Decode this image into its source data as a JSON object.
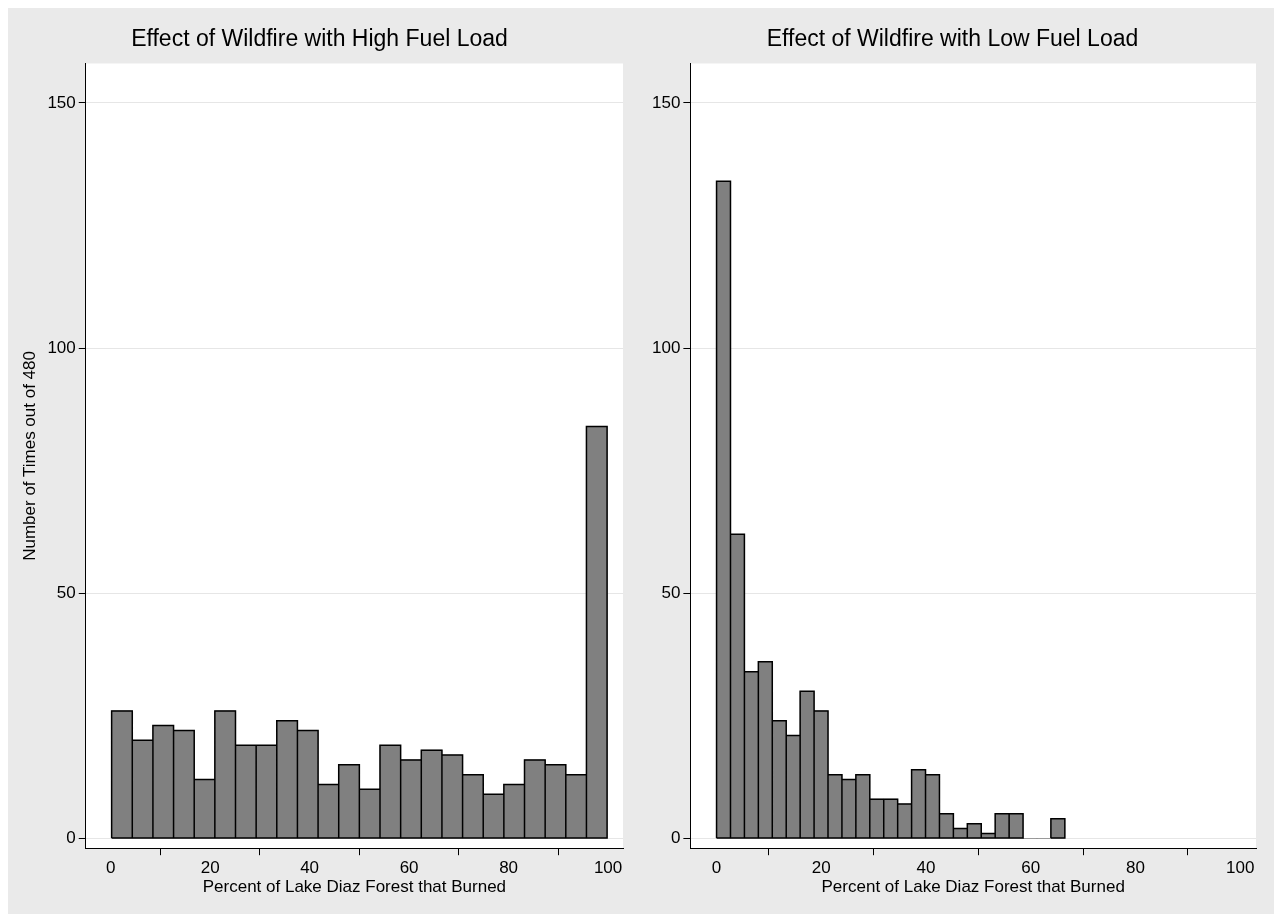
{
  "chart_data": [
    {
      "type": "histogram",
      "title": "Effect of Wildfire with High Fuel Load",
      "xlabel": "Percent of Lake Diaz Forest that Burned",
      "ylabel": "Number of Times out of 480",
      "bins": [
        0.2,
        4.35,
        8.5,
        12.65,
        16.8,
        20.95,
        25.1,
        29.25,
        33.4,
        37.55,
        41.7,
        45.85,
        50,
        54.15,
        58.3,
        62.45,
        66.6,
        70.75,
        74.9,
        79.05,
        83.2,
        87.35,
        91.5,
        95.65,
        99.8
      ],
      "values": [
        26,
        20,
        23,
        22,
        12,
        26,
        19,
        19,
        24,
        22,
        11,
        15,
        10,
        19,
        16,
        18,
        17,
        13,
        9,
        11,
        16,
        15,
        13,
        84
      ],
      "color": "#808080",
      "xlim": [
        -5,
        103
      ],
      "xticks": [
        0,
        20,
        40,
        60,
        80,
        100
      ],
      "ylim": [
        -2,
        158
      ],
      "yticks": [
        0,
        50,
        100,
        150
      ],
      "grid": "y"
    },
    {
      "type": "histogram",
      "title": "Effect of Wildfire with Low Fuel Load",
      "xlabel": "Percent of Lake Diaz Forest that Burned",
      "bins": [
        0,
        2.66,
        5.32,
        7.98,
        10.64,
        13.3,
        15.96,
        18.62,
        21.28,
        23.94,
        26.6,
        29.26,
        31.92,
        34.58,
        37.24,
        39.9,
        42.56,
        45.22,
        47.88,
        50.54,
        53.2,
        55.86,
        58.52,
        61.18,
        63.84,
        66.5
      ],
      "values": [
        134,
        62,
        34,
        36,
        24,
        21,
        30,
        26,
        13,
        12,
        13,
        8,
        8,
        7,
        14,
        13,
        5,
        2,
        3,
        1,
        5,
        5,
        0,
        0,
        4
      ],
      "color": "#808080",
      "xlim": [
        -5,
        103
      ],
      "xticks": [
        0,
        20,
        40,
        60,
        80,
        100
      ],
      "ylim": [
        -2,
        158
      ],
      "yticks": [
        0,
        50,
        100,
        150
      ],
      "grid": "y"
    }
  ]
}
